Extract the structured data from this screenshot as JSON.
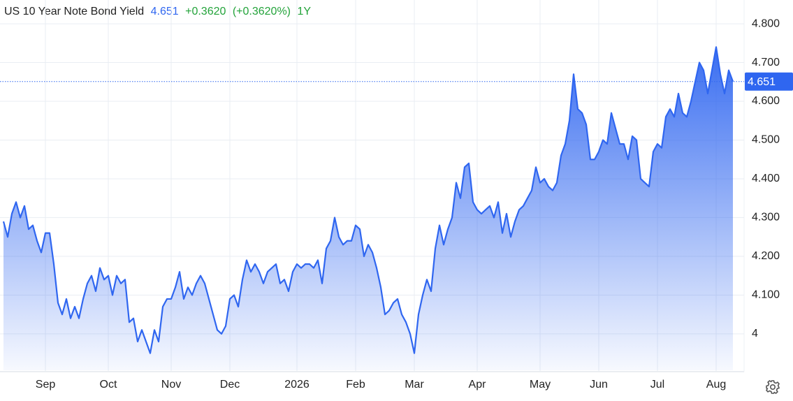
{
  "chart_data": {
    "type": "area",
    "title": "US 10 Year Note Bond Yield",
    "change": "+0.3620",
    "change_pct": "(+0.3620%)",
    "period": "1Y",
    "color": "#2f66f0",
    "change_color": "#23a33a",
    "categories": [
      null,
      null,
      null,
      null,
      null,
      null,
      null,
      null,
      null,
      null,
      "Sep",
      null,
      null,
      null,
      null,
      null,
      null,
      null,
      null,
      null,
      null,
      null,
      null,
      null,
      null,
      "Oct",
      null,
      null,
      null,
      null,
      null,
      null,
      null,
      null,
      null,
      null,
      null,
      null,
      null,
      null,
      "Nov",
      null,
      null,
      null,
      null,
      null,
      null,
      null,
      null,
      null,
      null,
      null,
      null,
      null,
      "Dec",
      null,
      null,
      null,
      null,
      null,
      null,
      null,
      null,
      null,
      null,
      null,
      null,
      null,
      null,
      null,
      "2026",
      null,
      null,
      null,
      null,
      null,
      null,
      null,
      null,
      null,
      null,
      null,
      null,
      null,
      "Feb",
      null,
      null,
      null,
      null,
      null,
      null,
      null,
      null,
      null,
      null,
      null,
      null,
      null,
      "Mar",
      null,
      null,
      null,
      null,
      null,
      null,
      null,
      null,
      null,
      null,
      null,
      null,
      null,
      null,
      "Apr",
      null,
      null,
      null,
      null,
      null,
      null,
      null,
      null,
      null,
      null,
      null,
      null,
      null,
      null,
      "May",
      null,
      null,
      null,
      null,
      null,
      null,
      null,
      null,
      null,
      null,
      null,
      null,
      null,
      "Jun",
      null,
      null,
      null,
      null,
      null,
      null,
      null,
      null,
      null,
      null,
      null,
      null,
      null,
      "Jul",
      null,
      null,
      null,
      null,
      null,
      null,
      null,
      null,
      null,
      null,
      null,
      null,
      null,
      "Aug",
      null,
      null,
      null,
      null
    ],
    "values": [
      4.29,
      4.25,
      4.31,
      4.34,
      4.3,
      4.33,
      4.27,
      4.28,
      4.24,
      4.21,
      4.26,
      4.26,
      4.18,
      4.08,
      4.05,
      4.09,
      4.04,
      4.07,
      4.04,
      4.09,
      4.13,
      4.15,
      4.11,
      4.17,
      4.14,
      4.15,
      4.1,
      4.15,
      4.13,
      4.14,
      4.03,
      4.04,
      3.98,
      4.01,
      3.98,
      3.95,
      4.01,
      3.98,
      4.07,
      4.09,
      4.09,
      4.12,
      4.16,
      4.09,
      4.12,
      4.1,
      4.13,
      4.15,
      4.13,
      4.09,
      4.05,
      4.01,
      4.0,
      4.02,
      4.09,
      4.1,
      4.07,
      4.14,
      4.19,
      4.16,
      4.18,
      4.16,
      4.13,
      4.16,
      4.17,
      4.18,
      4.13,
      4.14,
      4.11,
      4.16,
      4.18,
      4.17,
      4.18,
      4.18,
      4.17,
      4.19,
      4.13,
      4.22,
      4.24,
      4.3,
      4.25,
      4.23,
      4.24,
      4.24,
      4.28,
      4.27,
      4.2,
      4.23,
      4.21,
      4.17,
      4.12,
      4.05,
      4.06,
      4.08,
      4.09,
      4.05,
      4.03,
      4.0,
      3.95,
      4.05,
      4.1,
      4.14,
      4.11,
      4.22,
      4.28,
      4.23,
      4.27,
      4.3,
      4.39,
      4.35,
      4.43,
      4.44,
      4.34,
      4.32,
      4.31,
      4.32,
      4.33,
      4.3,
      4.34,
      4.26,
      4.31,
      4.25,
      4.29,
      4.32,
      4.33,
      4.35,
      4.37,
      4.43,
      4.39,
      4.4,
      4.38,
      4.37,
      4.39,
      4.46,
      4.49,
      4.55,
      4.67,
      4.58,
      4.57,
      4.54,
      4.45,
      4.45,
      4.47,
      4.5,
      4.49,
      4.57,
      4.53,
      4.49,
      4.49,
      4.45,
      4.51,
      4.5,
      4.4,
      4.39,
      4.38,
      4.47,
      4.49,
      4.48,
      4.56,
      4.58,
      4.56,
      4.62,
      4.57,
      4.56,
      4.6,
      4.65,
      4.7,
      4.68,
      4.62,
      4.68,
      4.74,
      4.67,
      4.62,
      4.68,
      4.651
    ],
    "ylim": [
      3.906,
      4.847
    ],
    "yticks": [
      {
        "value": 4.8,
        "label": "4.800"
      },
      {
        "value": 4.7,
        "label": "4.700"
      },
      {
        "value": 4.6,
        "label": "4.600"
      },
      {
        "value": 4.5,
        "label": "4.500"
      },
      {
        "value": 4.4,
        "label": "4.400"
      },
      {
        "value": 4.3,
        "label": "4.300"
      },
      {
        "value": 4.2,
        "label": "4.200"
      },
      {
        "value": 4.1,
        "label": "4.100"
      },
      4
    ],
    "grid": true
  }
}
